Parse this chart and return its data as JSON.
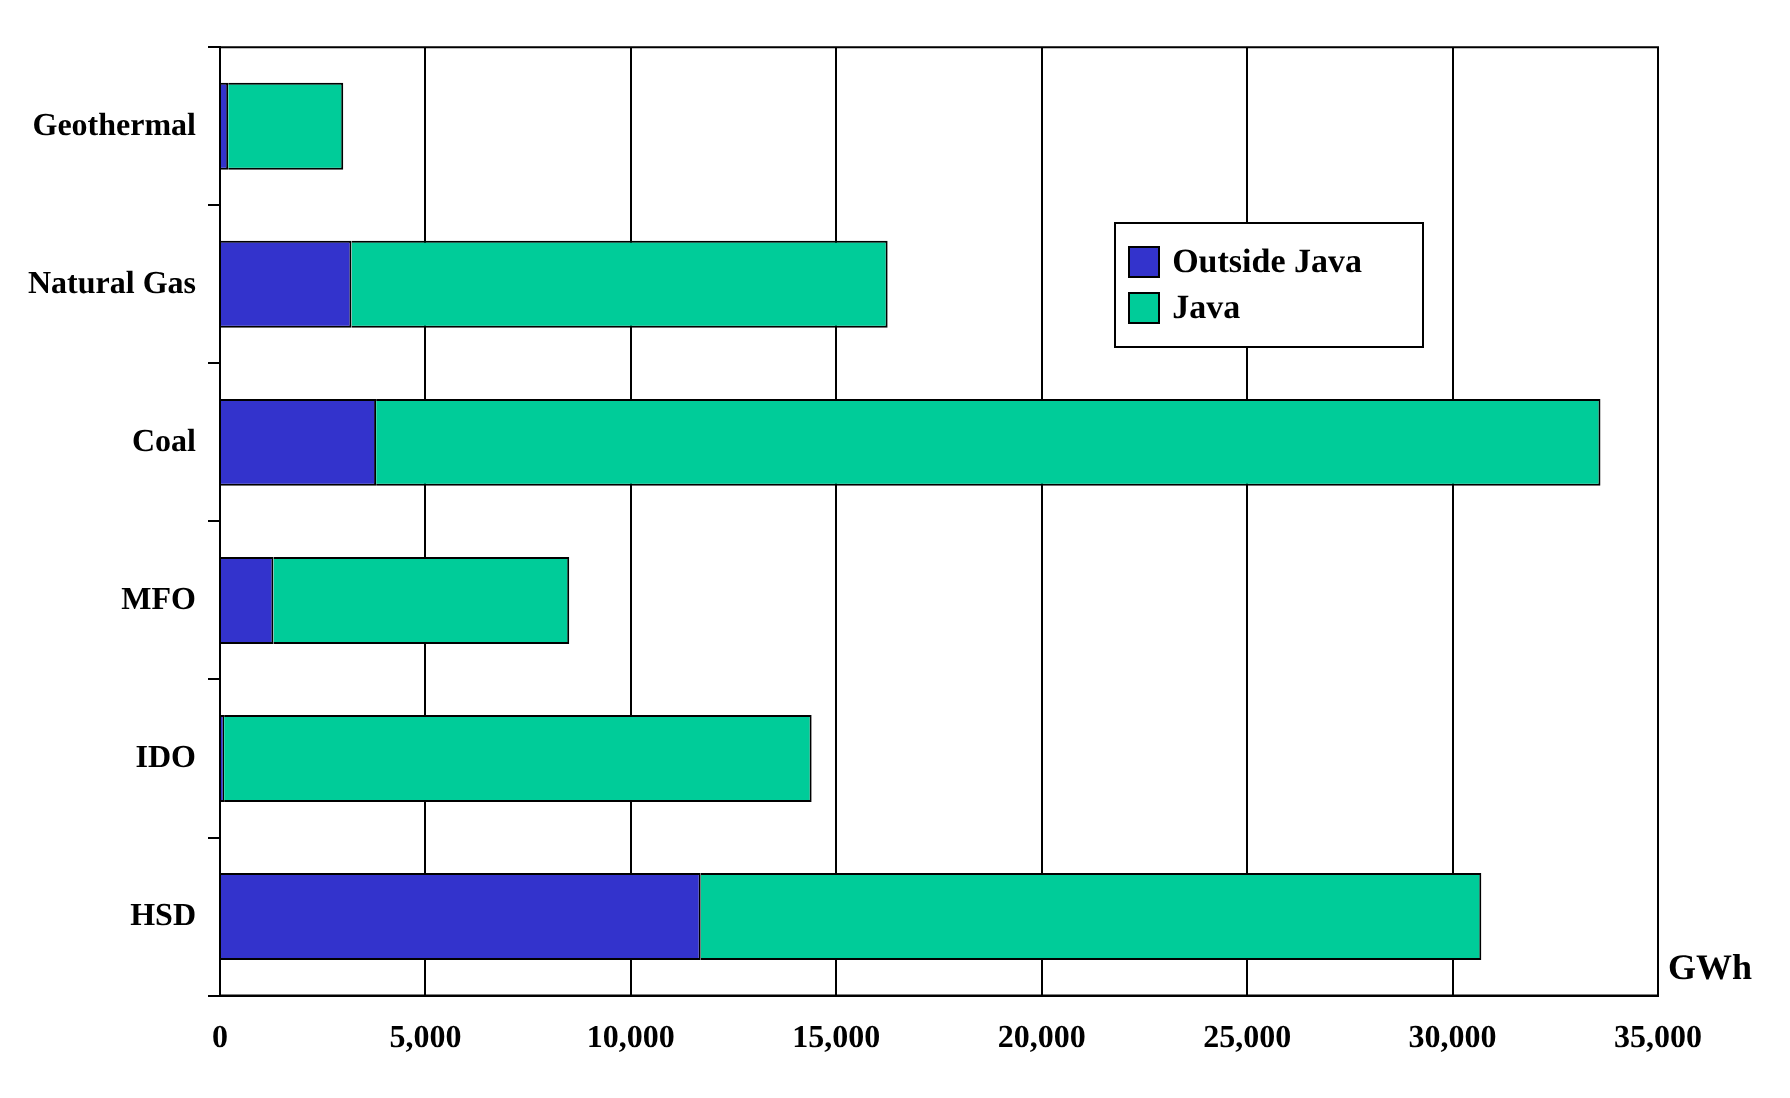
{
  "chart_data": {
    "type": "bar",
    "orientation": "horizontal",
    "stacked": true,
    "xlabel": "GWh",
    "categories": [
      "Geothermal",
      "Natural Gas",
      "Coal",
      "MFO",
      "IDO",
      "HSD"
    ],
    "series": [
      {
        "name": "Outside Java",
        "color": "#3333cc",
        "values": [
          200,
          3200,
          3800,
          1300,
          100,
          11700
        ]
      },
      {
        "name": "Java",
        "color": "#00cc99",
        "values": [
          2800,
          13050,
          29800,
          7200,
          14300,
          19000
        ]
      }
    ],
    "xlim": [
      0,
      35000
    ],
    "xticks": [
      {
        "value": 0,
        "label": "0"
      },
      {
        "value": 5000,
        "label": "5,000"
      },
      {
        "value": 10000,
        "label": "10,000"
      },
      {
        "value": 15000,
        "label": "15,000"
      },
      {
        "value": 20000,
        "label": "20,000"
      },
      {
        "value": 25000,
        "label": "25,000"
      },
      {
        "value": 30000,
        "label": "30,000"
      },
      {
        "value": 35000,
        "label": "35,000"
      }
    ],
    "grid": "x",
    "legend": "top right"
  }
}
